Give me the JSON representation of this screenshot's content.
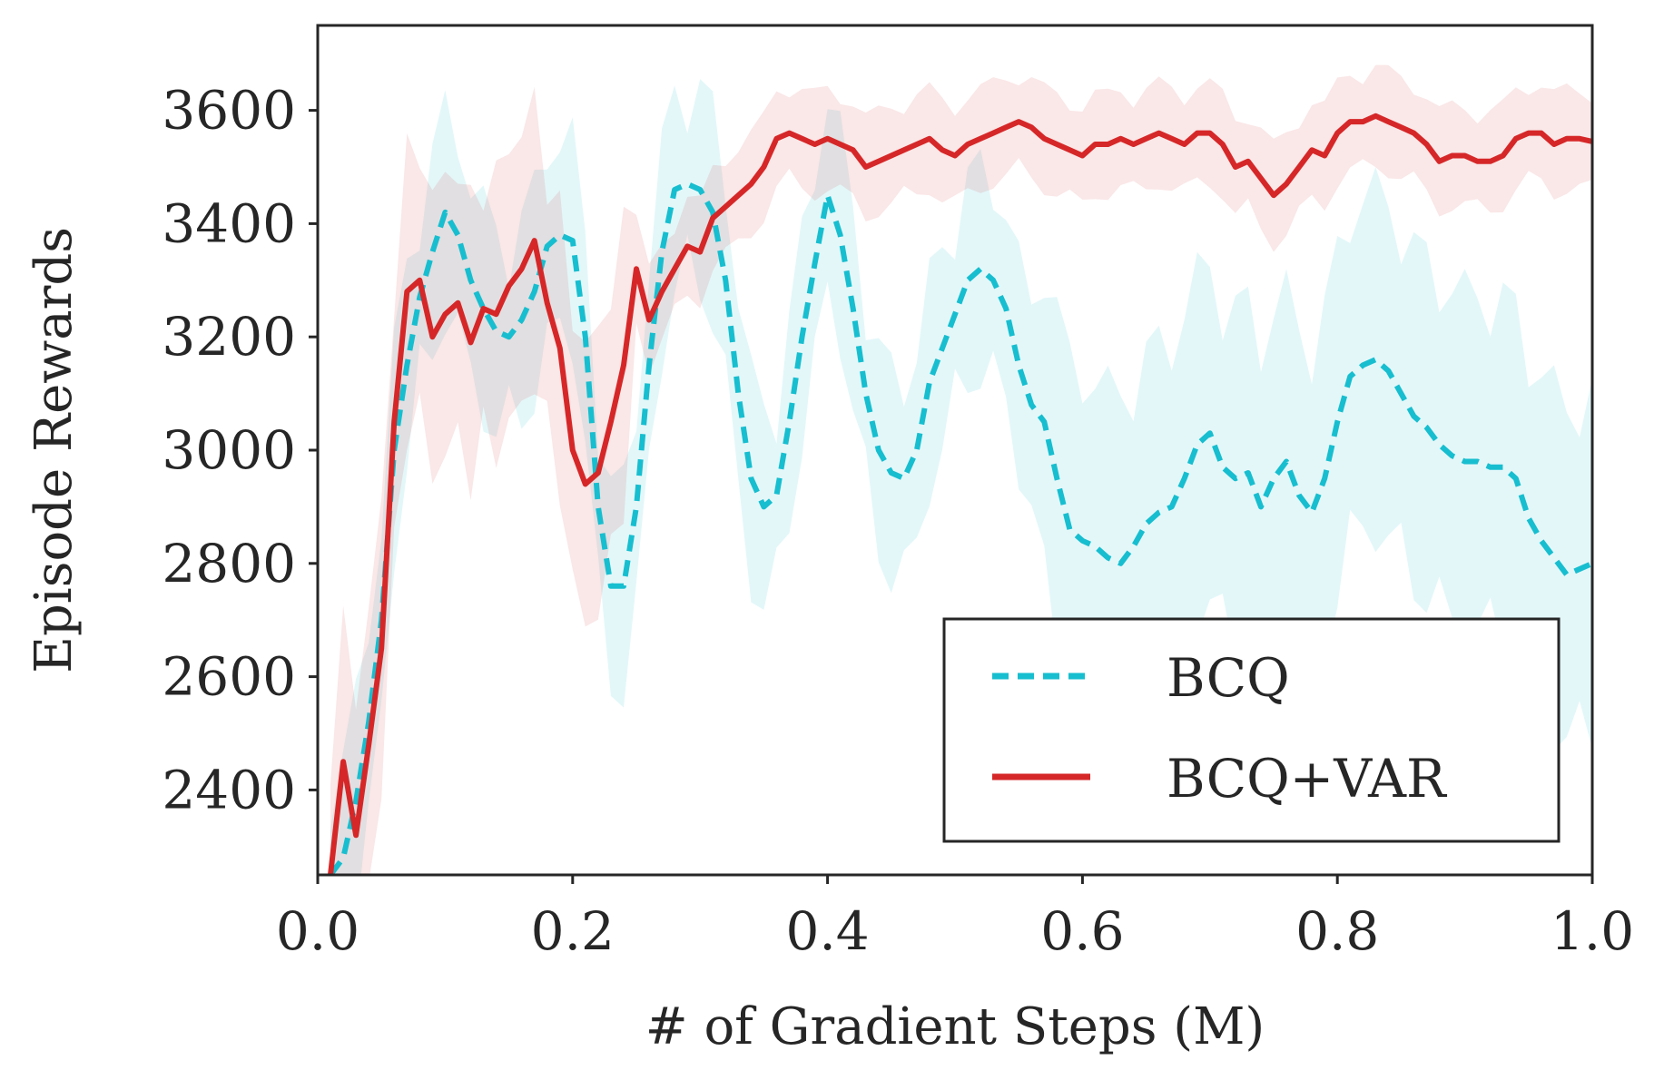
{
  "chart_data": {
    "type": "line",
    "title": "",
    "xlabel": "# of Gradient Steps (M)",
    "ylabel": "Episode Rewards",
    "xlim": [
      0.0,
      1.0
    ],
    "ylim": [
      2250,
      3750
    ],
    "xticks": [
      0.0,
      0.2,
      0.4,
      0.6,
      0.8,
      1.0
    ],
    "xtick_labels": [
      "0.0",
      "0.2",
      "0.4",
      "0.6",
      "0.8",
      "1.0"
    ],
    "yticks": [
      2400,
      2600,
      2800,
      3000,
      3200,
      3400,
      3600
    ],
    "ytick_labels": [
      "2400",
      "2600",
      "2800",
      "3000",
      "3200",
      "3400",
      "3600"
    ],
    "grid": false,
    "legend": "lower-right",
    "series": [
      {
        "name": "BCQ",
        "color": "#17becf",
        "style": "dashed",
        "x": [
          0.01,
          0.02,
          0.03,
          0.04,
          0.05,
          0.06,
          0.07,
          0.08,
          0.09,
          0.1,
          0.11,
          0.12,
          0.13,
          0.14,
          0.15,
          0.16,
          0.17,
          0.18,
          0.19,
          0.2,
          0.21,
          0.22,
          0.23,
          0.24,
          0.25,
          0.26,
          0.27,
          0.28,
          0.29,
          0.3,
          0.31,
          0.32,
          0.33,
          0.34,
          0.35,
          0.36,
          0.37,
          0.38,
          0.39,
          0.4,
          0.41,
          0.42,
          0.43,
          0.44,
          0.45,
          0.46,
          0.47,
          0.48,
          0.49,
          0.5,
          0.51,
          0.52,
          0.53,
          0.54,
          0.55,
          0.56,
          0.57,
          0.58,
          0.59,
          0.6,
          0.61,
          0.62,
          0.63,
          0.64,
          0.65,
          0.66,
          0.67,
          0.68,
          0.69,
          0.7,
          0.71,
          0.72,
          0.73,
          0.74,
          0.75,
          0.76,
          0.77,
          0.78,
          0.79,
          0.8,
          0.81,
          0.82,
          0.83,
          0.84,
          0.85,
          0.86,
          0.87,
          0.88,
          0.89,
          0.9,
          0.91,
          0.92,
          0.93,
          0.94,
          0.95,
          0.96,
          0.97,
          0.98,
          0.99,
          1.0
        ],
        "values": [
          2250,
          2280,
          2380,
          2520,
          2700,
          3000,
          3150,
          3270,
          3350,
          3420,
          3380,
          3300,
          3250,
          3210,
          3200,
          3230,
          3280,
          3360,
          3380,
          3370,
          3200,
          2900,
          2760,
          2760,
          2900,
          3150,
          3350,
          3460,
          3470,
          3460,
          3420,
          3300,
          3100,
          2950,
          2900,
          2920,
          3050,
          3200,
          3330,
          3450,
          3380,
          3250,
          3100,
          3000,
          2960,
          2950,
          3000,
          3120,
          3180,
          3240,
          3300,
          3320,
          3300,
          3250,
          3150,
          3080,
          3050,
          2950,
          2860,
          2840,
          2830,
          2810,
          2800,
          2830,
          2870,
          2890,
          2900,
          2950,
          3010,
          3030,
          2970,
          2950,
          2960,
          2900,
          2950,
          2980,
          2920,
          2890,
          2950,
          3050,
          3130,
          3150,
          3160,
          3140,
          3100,
          3060,
          3040,
          3010,
          2990,
          2980,
          2980,
          2970,
          2970,
          2950,
          2880,
          2840,
          2810,
          2780,
          2790,
          2800
        ]
      },
      {
        "name": "BCQ+VAR",
        "color": "#d62728",
        "style": "solid",
        "x": [
          0.01,
          0.02,
          0.03,
          0.04,
          0.05,
          0.06,
          0.07,
          0.08,
          0.09,
          0.1,
          0.11,
          0.12,
          0.13,
          0.14,
          0.15,
          0.16,
          0.17,
          0.18,
          0.19,
          0.2,
          0.21,
          0.22,
          0.23,
          0.24,
          0.25,
          0.26,
          0.27,
          0.28,
          0.29,
          0.3,
          0.31,
          0.32,
          0.33,
          0.34,
          0.35,
          0.36,
          0.37,
          0.38,
          0.39,
          0.4,
          0.41,
          0.42,
          0.43,
          0.44,
          0.45,
          0.46,
          0.47,
          0.48,
          0.49,
          0.5,
          0.51,
          0.52,
          0.53,
          0.54,
          0.55,
          0.56,
          0.57,
          0.58,
          0.59,
          0.6,
          0.61,
          0.62,
          0.63,
          0.64,
          0.65,
          0.66,
          0.67,
          0.68,
          0.69,
          0.7,
          0.71,
          0.72,
          0.73,
          0.74,
          0.75,
          0.76,
          0.77,
          0.78,
          0.79,
          0.8,
          0.81,
          0.82,
          0.83,
          0.84,
          0.85,
          0.86,
          0.87,
          0.88,
          0.89,
          0.9,
          0.91,
          0.92,
          0.93,
          0.94,
          0.95,
          0.96,
          0.97,
          0.98,
          0.99,
          1.0
        ],
        "values": [
          2250,
          2450,
          2320,
          2480,
          2650,
          3050,
          3280,
          3300,
          3200,
          3240,
          3260,
          3190,
          3250,
          3240,
          3290,
          3320,
          3370,
          3260,
          3180,
          3000,
          2940,
          2960,
          3050,
          3150,
          3320,
          3230,
          3280,
          3320,
          3360,
          3350,
          3410,
          3430,
          3450,
          3470,
          3500,
          3550,
          3560,
          3550,
          3540,
          3550,
          3540,
          3530,
          3500,
          3510,
          3520,
          3530,
          3540,
          3550,
          3530,
          3520,
          3540,
          3550,
          3560,
          3570,
          3580,
          3570,
          3550,
          3540,
          3530,
          3520,
          3540,
          3540,
          3550,
          3540,
          3550,
          3560,
          3550,
          3540,
          3560,
          3560,
          3540,
          3500,
          3510,
          3480,
          3450,
          3470,
          3500,
          3530,
          3520,
          3560,
          3580,
          3580,
          3590,
          3580,
          3570,
          3560,
          3540,
          3510,
          3520,
          3520,
          3510,
          3510,
          3520,
          3550,
          3560,
          3560,
          3540,
          3550,
          3550,
          3545
        ]
      }
    ]
  }
}
